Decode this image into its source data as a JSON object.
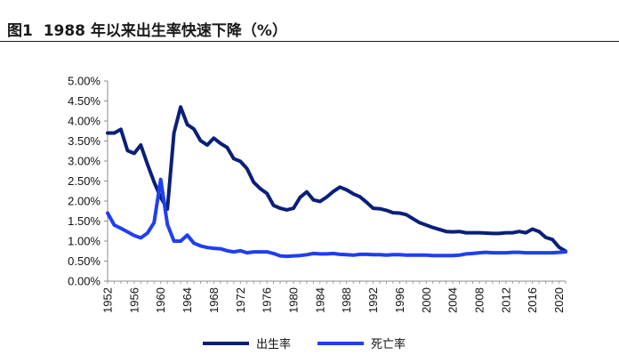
{
  "header": {
    "figure_label": "图1",
    "title": "1988 年以来出生率快速下降（%）"
  },
  "chart_data": {
    "type": "line",
    "ylim": [
      0,
      5
    ],
    "xlim": [
      1952,
      2021
    ],
    "y_ticks": [
      0,
      0.5,
      1,
      1.5,
      2,
      2.5,
      3,
      3.5,
      4,
      4.5,
      5
    ],
    "y_tick_labels": [
      "0.00%",
      "0.50%",
      "1.00%",
      "1.50%",
      "2.00%",
      "2.50%",
      "3.00%",
      "3.50%",
      "4.00%",
      "4.50%",
      "5.00%"
    ],
    "x_ticks": [
      1952,
      1956,
      1960,
      1964,
      1968,
      1972,
      1976,
      1980,
      1984,
      1988,
      1992,
      1996,
      2000,
      2004,
      2008,
      2012,
      2016,
      2020
    ],
    "x_tick_labels": [
      "1952",
      "1956",
      "1960",
      "1964",
      "1968",
      "1972",
      "1976",
      "1980",
      "1984",
      "1988",
      "1992",
      "1996",
      "2000",
      "2004",
      "2008",
      "2012",
      "2016",
      "2020"
    ],
    "grid": false,
    "legend_position": "bottom-center",
    "x": [
      1952,
      1953,
      1954,
      1955,
      1956,
      1957,
      1958,
      1959,
      1960,
      1961,
      1962,
      1963,
      1964,
      1965,
      1966,
      1967,
      1968,
      1969,
      1970,
      1971,
      1972,
      1973,
      1974,
      1975,
      1976,
      1977,
      1978,
      1979,
      1980,
      1981,
      1982,
      1983,
      1984,
      1985,
      1986,
      1987,
      1988,
      1989,
      1990,
      1991,
      1992,
      1993,
      1994,
      1995,
      1996,
      1997,
      1998,
      1999,
      2000,
      2001,
      2002,
      2003,
      2004,
      2005,
      2006,
      2007,
      2008,
      2009,
      2010,
      2011,
      2012,
      2013,
      2014,
      2015,
      2016,
      2017,
      2018,
      2019,
      2020,
      2021
    ],
    "series": [
      {
        "name": "出生率",
        "color": "#0a1f7a",
        "values": [
          3.7,
          3.7,
          3.79,
          3.26,
          3.19,
          3.4,
          2.92,
          2.48,
          2.09,
          1.8,
          3.7,
          4.35,
          3.91,
          3.8,
          3.51,
          3.4,
          3.57,
          3.44,
          3.34,
          3.06,
          2.99,
          2.81,
          2.47,
          2.31,
          2.19,
          1.89,
          1.82,
          1.78,
          1.82,
          2.09,
          2.23,
          2.03,
          1.99,
          2.1,
          2.24,
          2.35,
          2.28,
          2.18,
          2.11,
          1.97,
          1.82,
          1.81,
          1.77,
          1.71,
          1.7,
          1.66,
          1.56,
          1.46,
          1.4,
          1.34,
          1.29,
          1.24,
          1.23,
          1.24,
          1.21,
          1.21,
          1.21,
          1.2,
          1.19,
          1.19,
          1.21,
          1.21,
          1.24,
          1.21,
          1.3,
          1.24,
          1.09,
          1.04,
          0.85,
          0.75
        ]
      },
      {
        "name": "死亡率",
        "color": "#1f3ff0",
        "values": [
          1.7,
          1.4,
          1.32,
          1.23,
          1.14,
          1.08,
          1.2,
          1.46,
          2.54,
          1.42,
          1.0,
          1.0,
          1.15,
          0.95,
          0.88,
          0.84,
          0.82,
          0.81,
          0.76,
          0.73,
          0.76,
          0.71,
          0.73,
          0.73,
          0.73,
          0.69,
          0.63,
          0.62,
          0.63,
          0.64,
          0.66,
          0.69,
          0.68,
          0.68,
          0.69,
          0.67,
          0.66,
          0.65,
          0.67,
          0.67,
          0.66,
          0.66,
          0.65,
          0.66,
          0.66,
          0.65,
          0.65,
          0.65,
          0.65,
          0.64,
          0.64,
          0.64,
          0.64,
          0.65,
          0.68,
          0.69,
          0.71,
          0.72,
          0.71,
          0.71,
          0.71,
          0.72,
          0.72,
          0.71,
          0.71,
          0.71,
          0.71,
          0.71,
          0.72,
          0.73
        ]
      }
    ]
  }
}
